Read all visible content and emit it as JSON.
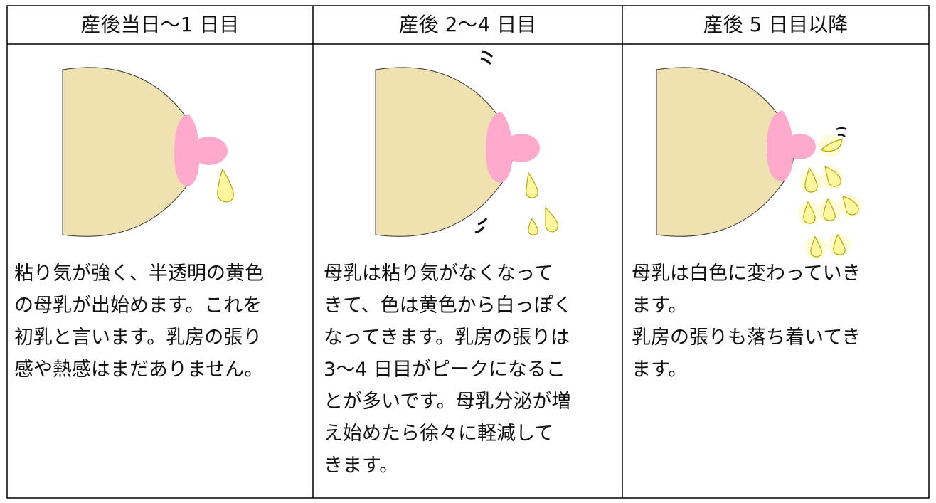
{
  "columns": [
    {
      "header": "産後当日～1 日目",
      "lines": [
        "粘り気が強く、半透明の黄色",
        "の母乳が出始めます。これを",
        "初乳と言います。乳房の張り",
        "感や熱感はまだありません。"
      ]
    },
    {
      "header": "産後 2～4 日目",
      "lines": [
        "母乳は粘り気がなくなって",
        "きて、色は黄色から白っぽく",
        "なってきます。乳房の張りは",
        "3～4 日目がピークになるこ",
        "とが多いです。母乳分泌が増",
        "え始めたら徐々に軽減して",
        "きます。"
      ]
    },
    {
      "header": "産後 5 日目以降",
      "lines": [
        "母乳は白色に変わっていき",
        "ます。",
        "乳房の張りも落ち着いてき",
        "ます。"
      ]
    }
  ]
}
